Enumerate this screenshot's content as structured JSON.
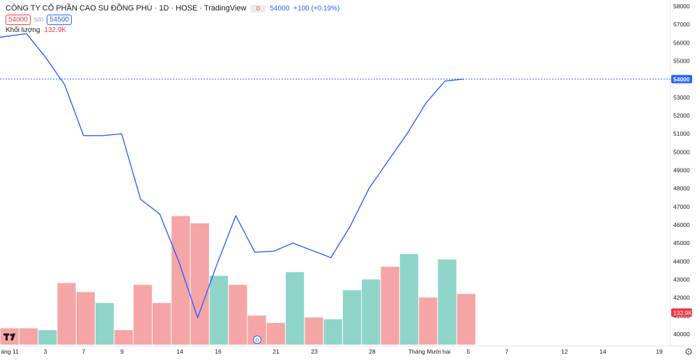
{
  "header": {
    "title": "CÔNG TY CỔ PHẦN CAO SU ĐỒNG PHÚ · 1D · HOSE · TradingView",
    "badge": "D",
    "last_price": "54000",
    "change": "+100 (+0.19%)"
  },
  "quote_boxes": {
    "bid": "54000",
    "spread": "500",
    "ask": "54500"
  },
  "volume_legend": {
    "label": "Khối lượng",
    "value": "132.9K"
  },
  "colors": {
    "line": "#2962ff",
    "vol_up": "#8fd4c9",
    "vol_down": "#f5a5a5",
    "last_price_label": "#2962ff",
    "volume_label": "#f23645"
  },
  "icons": {
    "logo": "tradingview-logo-icon",
    "settings": "gear-icon",
    "dividend": "dividend-marker-icon"
  },
  "dividend_marker": {
    "label": "D",
    "x": "19"
  },
  "chart_data": {
    "type": "line",
    "price_axis": {
      "ticks": [
        58000,
        57000,
        56000,
        55000,
        54000,
        53000,
        52000,
        51000,
        50000,
        49000,
        48000,
        47000,
        46000,
        45000,
        44000,
        43000,
        42000,
        41000,
        40000
      ],
      "labels": [
        "58000",
        "57000",
        "56000",
        "55000",
        "54000",
        "53000",
        "52000",
        "51000",
        "50000",
        "49000",
        "48000",
        "47000",
        "46000",
        "45000",
        "44000",
        "43000",
        "42000",
        "41000",
        "40000"
      ],
      "range": [
        39300,
        58300
      ]
    },
    "last_price_label": "54000",
    "volume_label": "132.9K",
    "x_ticks": [
      "áng 11",
      "3",
      "7",
      "9",
      "14",
      "16",
      "21",
      "23",
      "28",
      "Tháng Mười hai",
      "5",
      "7",
      "12",
      "14",
      "19"
    ],
    "dates": [
      "1",
      "2",
      "3",
      "6",
      "7",
      "8",
      "9",
      "10",
      "13",
      "14",
      "15",
      "16",
      "17",
      "20",
      "21",
      "22",
      "23",
      "24",
      "27",
      "28",
      "29",
      "30",
      "Tháng Mười hai",
      "3",
      "4"
    ],
    "close": [
      56300,
      56500,
      55200,
      53700,
      50900,
      50900,
      51000,
      47400,
      46600,
      44000,
      40900,
      43800,
      46500,
      44500,
      44550,
      45000,
      44600,
      44200,
      45900,
      48000,
      49500,
      51000,
      52700,
      53900,
      54000
    ],
    "volume": {
      "relative": [
        0.09,
        0.09,
        0.08,
        0.34,
        0.29,
        0.23,
        0.08,
        0.33,
        0.23,
        0.71,
        0.67,
        0.38,
        0.33,
        0.16,
        0.12,
        0.4,
        0.15,
        0.14,
        0.3,
        0.36,
        0.43,
        0.5,
        0.26,
        0.47,
        0.28
      ],
      "direction": [
        "down",
        "down",
        "up",
        "down",
        "down",
        "up",
        "down",
        "down",
        "down",
        "down",
        "down",
        "up",
        "down",
        "down",
        "down",
        "up",
        "down",
        "up",
        "up",
        "up",
        "down",
        "up",
        "down",
        "up",
        "down"
      ]
    }
  }
}
